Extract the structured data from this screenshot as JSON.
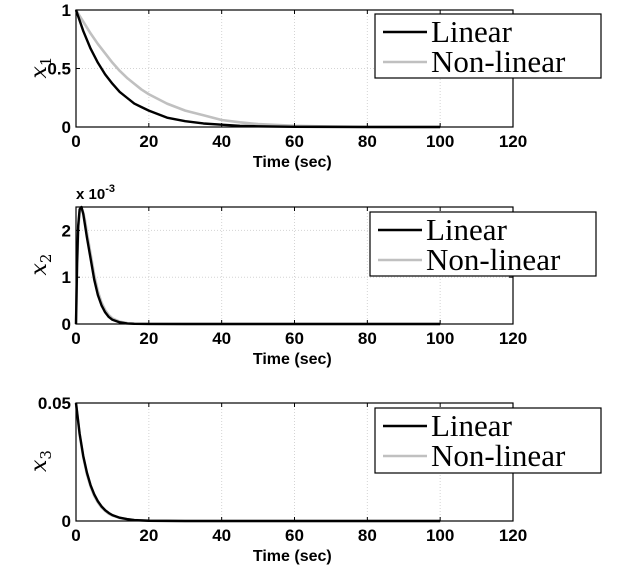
{
  "chart_data": [
    {
      "type": "line",
      "xlabel": "Time (sec)",
      "ylabel": "x",
      "ylabel_sub": "1",
      "xlim": [
        0,
        120
      ],
      "ylim": [
        0,
        1
      ],
      "xticks": [
        "0",
        "20",
        "40",
        "60",
        "80",
        "100",
        "120"
      ],
      "yticks": [
        "0",
        "0.5",
        "1"
      ],
      "grid": true,
      "legend_position": "top-right",
      "exponent_label": "",
      "series": [
        {
          "name": "Linear",
          "color": "#000000",
          "x": [
            0,
            2,
            4,
            6,
            8,
            10,
            12,
            14,
            16,
            18,
            20,
            25,
            30,
            35,
            40,
            45,
            50,
            60,
            70,
            80,
            90,
            100
          ],
          "y": [
            1,
            0.82,
            0.67,
            0.55,
            0.45,
            0.37,
            0.3,
            0.25,
            0.2,
            0.17,
            0.14,
            0.08,
            0.05,
            0.03,
            0.02,
            0.01,
            0.006,
            0.002,
            0.001,
            0,
            0,
            0
          ]
        },
        {
          "name": "Non-linear",
          "color": "#c0c0c0",
          "x": [
            0,
            2,
            4,
            6,
            8,
            10,
            12,
            14,
            16,
            18,
            20,
            25,
            30,
            35,
            40,
            45,
            50,
            60,
            70,
            80,
            90,
            100
          ],
          "y": [
            1,
            0.9,
            0.8,
            0.71,
            0.63,
            0.55,
            0.48,
            0.42,
            0.37,
            0.32,
            0.28,
            0.2,
            0.14,
            0.1,
            0.06,
            0.04,
            0.025,
            0.01,
            0.004,
            0.001,
            0,
            0
          ]
        }
      ]
    },
    {
      "type": "line",
      "xlabel": "Time (sec)",
      "ylabel": "x",
      "ylabel_sub": "2",
      "xlim": [
        0,
        120
      ],
      "ylim": [
        0,
        2.5
      ],
      "xticks": [
        "0",
        "20",
        "40",
        "60",
        "80",
        "100",
        "120"
      ],
      "yticks": [
        "0",
        "1",
        "2"
      ],
      "grid": true,
      "legend_position": "top-right",
      "exponent_label": "x 10",
      "exponent_power": "-3",
      "series": [
        {
          "name": "Linear",
          "color": "#000000",
          "x": [
            0,
            0.3,
            0.6,
            1,
            1.5,
            2,
            2.5,
            3,
            4,
            5,
            6,
            7,
            8,
            9,
            10,
            12,
            14,
            16,
            20,
            30,
            50,
            100
          ],
          "y": [
            0,
            1.3,
            2.1,
            2.45,
            2.5,
            2.35,
            2.1,
            1.85,
            1.4,
            0.95,
            0.62,
            0.4,
            0.25,
            0.15,
            0.09,
            0.035,
            0.012,
            0.005,
            0.001,
            0,
            0,
            0
          ]
        },
        {
          "name": "Non-linear",
          "color": "#c0c0c0",
          "x": [
            0,
            0.3,
            0.6,
            1,
            1.5,
            2,
            2.5,
            3,
            4,
            5,
            6,
            7,
            8,
            9,
            10,
            12,
            14,
            16,
            20,
            30,
            50,
            100
          ],
          "y": [
            0,
            1.2,
            2.0,
            2.4,
            2.48,
            2.38,
            2.2,
            1.95,
            1.5,
            1.05,
            0.7,
            0.46,
            0.3,
            0.19,
            0.12,
            0.05,
            0.02,
            0.008,
            0.002,
            0,
            0,
            0
          ]
        }
      ]
    },
    {
      "type": "line",
      "xlabel": "Time (sec)",
      "ylabel": "x",
      "ylabel_sub": "3",
      "xlim": [
        0,
        120
      ],
      "ylim": [
        0,
        0.05
      ],
      "xticks": [
        "0",
        "20",
        "40",
        "60",
        "80",
        "100",
        "120"
      ],
      "yticks": [
        "0",
        "0.05"
      ],
      "grid": true,
      "legend_position": "top-right",
      "exponent_label": "",
      "series": [
        {
          "name": "Linear",
          "color": "#000000",
          "x": [
            0,
            1,
            2,
            3,
            4,
            5,
            6,
            7,
            8,
            9,
            10,
            12,
            14,
            16,
            20,
            30,
            50,
            100
          ],
          "y": [
            0.05,
            0.037,
            0.0275,
            0.0205,
            0.0152,
            0.0113,
            0.0084,
            0.0062,
            0.0046,
            0.0034,
            0.0025,
            0.0014,
            0.0008,
            0.0004,
            0.0001,
            0,
            0,
            0
          ]
        },
        {
          "name": "Non-linear",
          "color": "#c0c0c0",
          "x": [
            0,
            1,
            2,
            3,
            4,
            5,
            6,
            7,
            8,
            9,
            10,
            12,
            14,
            16,
            20,
            30,
            50,
            100
          ],
          "y": [
            0.05,
            0.0365,
            0.027,
            0.0198,
            0.0146,
            0.0107,
            0.0079,
            0.0058,
            0.0043,
            0.0031,
            0.0023,
            0.0013,
            0.0007,
            0.0004,
            0.0001,
            0,
            0,
            0
          ]
        }
      ]
    }
  ]
}
